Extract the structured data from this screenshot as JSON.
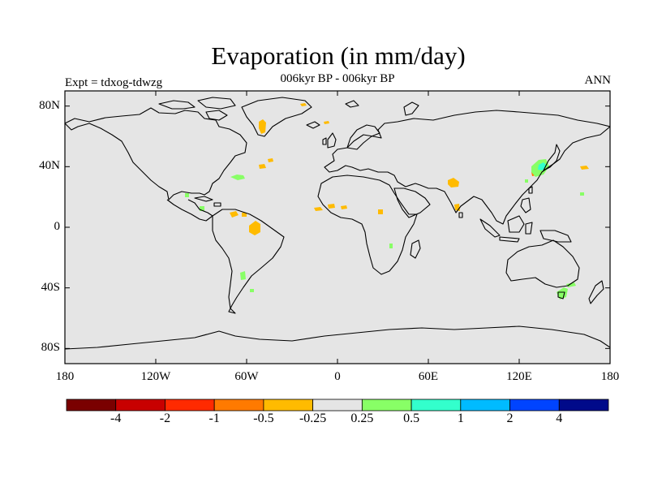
{
  "title": "Evaporation (in mm/day)",
  "subtitle": "006kyr BP - 006kyr BP",
  "left_label": "Expt = tdxog-tdwzg",
  "right_label": "ANN",
  "lat_ticks": [
    {
      "label": "80N",
      "lat": 80
    },
    {
      "label": "40N",
      "lat": 40
    },
    {
      "label": "0",
      "lat": 0
    },
    {
      "label": "40S",
      "lat": -40
    },
    {
      "label": "80S",
      "lat": -80
    }
  ],
  "lon_ticks": [
    {
      "label": "180",
      "lon": -180
    },
    {
      "label": "120W",
      "lon": -120
    },
    {
      "label": "60W",
      "lon": -60
    },
    {
      "label": "0",
      "lon": 0
    },
    {
      "label": "60E",
      "lon": 60
    },
    {
      "label": "120E",
      "lon": 120
    },
    {
      "label": "180",
      "lon": 180
    }
  ],
  "colorbar": {
    "colors": [
      "#7a0000",
      "#c80000",
      "#ff2a00",
      "#ff7a00",
      "#ffbb00",
      "#e5e5e5",
      "#88ff66",
      "#33ffcc",
      "#00bbff",
      "#0044ff",
      "#000a8a"
    ],
    "labels": [
      "-4",
      "-2",
      "-1",
      "-0.5",
      "-0.25",
      "0.25",
      "0.5",
      "1",
      "2",
      "4"
    ]
  },
  "colors": {
    "background_field": "#e5e5e5",
    "coastline": "#000000"
  }
}
